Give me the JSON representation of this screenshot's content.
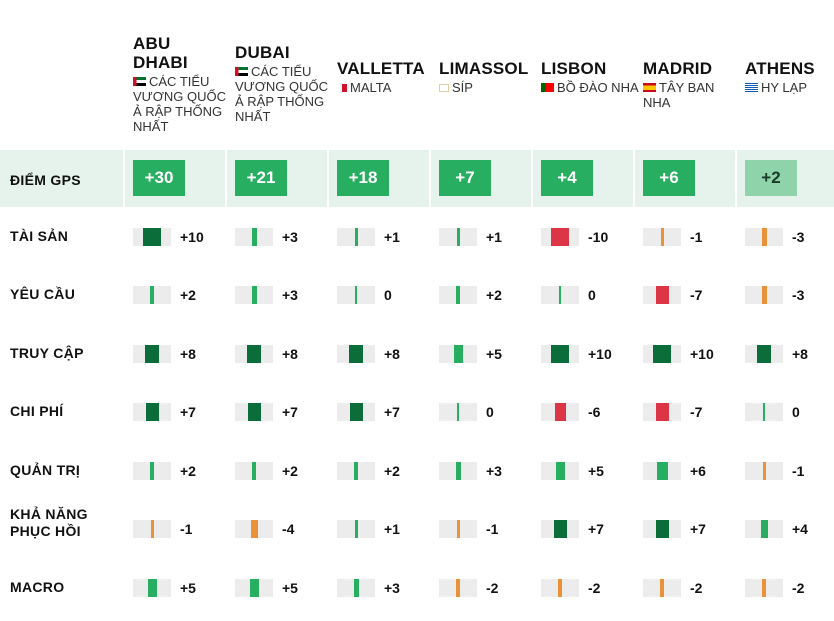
{
  "cities": [
    {
      "name": "ABU DHABI",
      "country": "CÁC TIỂU VƯƠNG QUỐC Ả RẬP THỐNG NHẤT",
      "flag": "uae-flag-icon"
    },
    {
      "name": "DUBAI",
      "country": "CÁC TIỂU VƯƠNG QUỐC Ả RẬP THỐNG NHẤT",
      "flag": "uae-flag-icon"
    },
    {
      "name": "VALLETTA",
      "country": "MALTA",
      "flag": "malta-flag-icon"
    },
    {
      "name": "LIMASSOL",
      "country": "SÍP",
      "flag": "cyprus-flag-icon"
    },
    {
      "name": "LISBON",
      "country": "BỒ ĐÀO NHA",
      "flag": "portugal-flag-icon"
    },
    {
      "name": "MADRID",
      "country": "TÂY BAN NHA",
      "flag": "spain-flag-icon"
    },
    {
      "name": "ATHENS",
      "country": "HY LẠP",
      "flag": "greece-flag-icon"
    }
  ],
  "gps": {
    "label": "ĐIỂM GPS",
    "values": [
      "+30",
      "+21",
      "+18",
      "+7",
      "+4",
      "+6",
      "+2"
    ]
  },
  "chart_data": {
    "type": "table",
    "categories": [
      "ABU DHABI",
      "DUBAI",
      "VALLETTA",
      "LIMASSOL",
      "LISBON",
      "MADRID",
      "ATHENS"
    ],
    "series": [
      {
        "name": "TÀI SẢN",
        "values": [
          10,
          3,
          1,
          1,
          -10,
          -1,
          -3
        ]
      },
      {
        "name": "YÊU CẦU",
        "values": [
          2,
          3,
          0,
          2,
          0,
          -7,
          -3
        ]
      },
      {
        "name": "TRUY CẬP",
        "values": [
          8,
          8,
          8,
          5,
          10,
          10,
          8
        ]
      },
      {
        "name": "CHI PHÍ",
        "values": [
          7,
          7,
          7,
          0,
          -6,
          -7,
          0
        ]
      },
      {
        "name": "QUẢN TRỊ",
        "values": [
          2,
          2,
          2,
          3,
          5,
          6,
          -1
        ]
      },
      {
        "name": "KHẢ NĂNG PHỤC HỒI",
        "values": [
          -1,
          -4,
          1,
          -1,
          7,
          7,
          4
        ]
      },
      {
        "name": "MACRO",
        "values": [
          5,
          5,
          3,
          -2,
          -2,
          -2,
          -2
        ]
      }
    ],
    "value_labels": [
      [
        "+10",
        "+3",
        "+1",
        "+1",
        "-10",
        "-1",
        "-3"
      ],
      [
        "+2",
        "+3",
        "0",
        "+2",
        "0",
        "-7",
        "-3"
      ],
      [
        "+8",
        "+8",
        "+8",
        "+5",
        "+10",
        "+10",
        "+8"
      ],
      [
        "+7",
        "+7",
        "+7",
        "0",
        "-6",
        "-7",
        "0"
      ],
      [
        "+2",
        "+2",
        "+2",
        "+3",
        "+5",
        "+6",
        "-1"
      ],
      [
        "-1",
        "-4",
        "+1",
        "-1",
        "+7",
        "+7",
        "+4"
      ],
      [
        "+5",
        "+5",
        "+3",
        "-2",
        "-2",
        "-2",
        "-2"
      ]
    ],
    "row_labels": [
      "TÀI SẢN",
      "YÊU CẦU",
      "TRUY CẬP",
      "CHI PHÍ",
      "QUẢN TRỊ",
      "KHẢ NĂNG\nPHỤC HỒI",
      "MACRO"
    ],
    "ylim": [
      -10,
      10
    ]
  },
  "colors": {
    "strong_positive": "#0b6e3a",
    "positive": "#27ae60",
    "light_positive": "#8fd3aa",
    "weak_negative": "#e8923a",
    "strong_negative": "#dc3545",
    "track": "#ececec",
    "gps_band": "#e6f3ec"
  }
}
